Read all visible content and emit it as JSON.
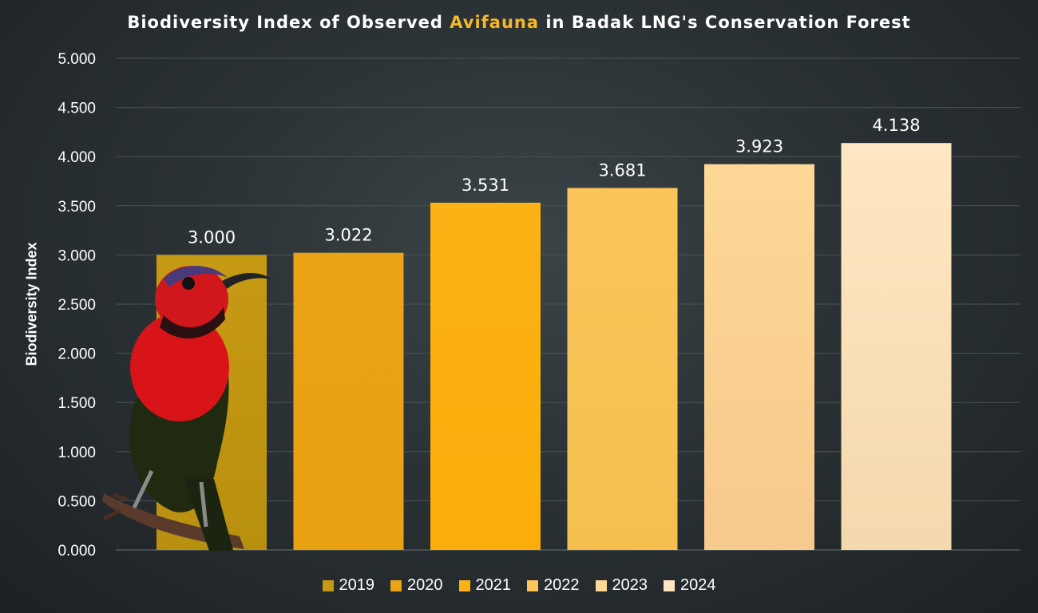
{
  "title": {
    "before": "Biodiversity Index of Observed ",
    "highlight": "Avifauna",
    "after": " in Badak LNG's Conservation Forest",
    "highlight_color": "#f5b82a"
  },
  "chart_data": {
    "type": "bar",
    "categories": [
      "2019",
      "2020",
      "2021",
      "2022",
      "2023",
      "2024"
    ],
    "values": [
      3.0,
      3.022,
      3.531,
      3.681,
      3.923,
      4.138
    ],
    "value_labels": [
      "3.000",
      "3.022",
      "3.531",
      "3.681",
      "3.923",
      "4.138"
    ],
    "ylabel": "Biodiversity Index",
    "ylim": [
      0,
      5
    ],
    "yticks": [
      0,
      0.5,
      1,
      1.5,
      2,
      2.5,
      3,
      3.5,
      4,
      4.5,
      5
    ],
    "ytick_labels": [
      "0.000",
      "0.500",
      "1.000",
      "1.500",
      "2.000",
      "2.500",
      "3.000",
      "3.500",
      "4.000",
      "4.500",
      "5.000"
    ],
    "grid": true,
    "legend_position": "bottom",
    "colors": [
      "#c79a14",
      "#e9a315",
      "#fbb214",
      "#fcc55a",
      "#fdd896",
      "#fee7c2"
    ],
    "colors_bottom": [
      "#b8900f",
      "#e9a211",
      "#fbae0b",
      "#f5bf50",
      "#f6c98c",
      "#f4d8ae"
    ]
  },
  "overlay_image": "red-sunbird-photo"
}
